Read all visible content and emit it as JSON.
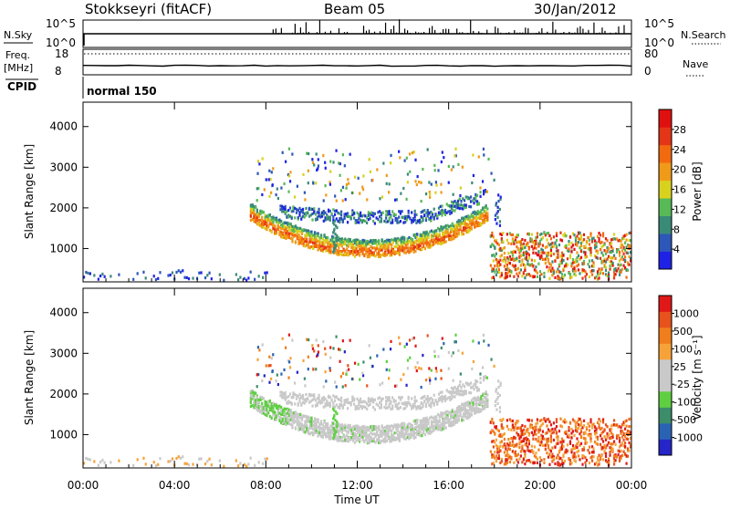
{
  "header": {
    "radar": "Stokkseyri (fitACF)",
    "beam": "Beam 05",
    "date": "30/Jan/2012"
  },
  "top_panels": {
    "nsky_label": "N.Sky",
    "nsky_ticks": [
      "10^5",
      "10^0"
    ],
    "nsearch_label": "N.Search",
    "nsearch_ticks": [
      "10^5",
      "10^0"
    ],
    "freq_label": "Freq.",
    "freq_unit": "[MHz]",
    "freq_ticks": [
      "18",
      "8"
    ],
    "nave_label": "Nave",
    "nave_ticks": [
      "80",
      "0"
    ],
    "cpid_label": "CPID",
    "cpid_value": "normal 150"
  },
  "chart_data": [
    {
      "type": "heatmap",
      "name": "power",
      "ylabel": "Slant Range [km]",
      "ylim": [
        180,
        4600
      ],
      "yticks": [
        "1000",
        "2000",
        "3000",
        "4000"
      ],
      "xlim": [
        0,
        24
      ],
      "colorbar": {
        "label": "Power [dB]",
        "ticks": [
          "4",
          "8",
          "12",
          "16",
          "20",
          "24",
          "28"
        ],
        "colors": [
          "#1e22e6",
          "#2d57b8",
          "#3a8a78",
          "#58b957",
          "#d8d21e",
          "#f09a1a",
          "#f26a10",
          "#e43517",
          "#e01010"
        ]
      }
    },
    {
      "type": "heatmap",
      "name": "velocity",
      "ylabel": "Slant Range [km]",
      "ylim": [
        180,
        4600
      ],
      "yticks": [
        "1000",
        "2000",
        "3000",
        "4000"
      ],
      "xlim": [
        0,
        24
      ],
      "colorbar": {
        "label": "Velocity [m s⁻¹]",
        "ticks": [
          "1000",
          "500",
          "100",
          "25",
          "-25",
          "-100",
          "-500",
          "-1000"
        ],
        "colors": [
          "#2525c8",
          "#2b63b4",
          "#3d8d6b",
          "#5fcf42",
          "#c9c9c9",
          "#c9c9c9",
          "#f7a238",
          "#f07e1c",
          "#e8521c",
          "#e01818"
        ]
      }
    }
  ],
  "x_axis": {
    "ticks": [
      "00:00",
      "04:00",
      "08:00",
      "12:00",
      "16:00",
      "20:00",
      "00:00"
    ],
    "label": "Time UT"
  }
}
